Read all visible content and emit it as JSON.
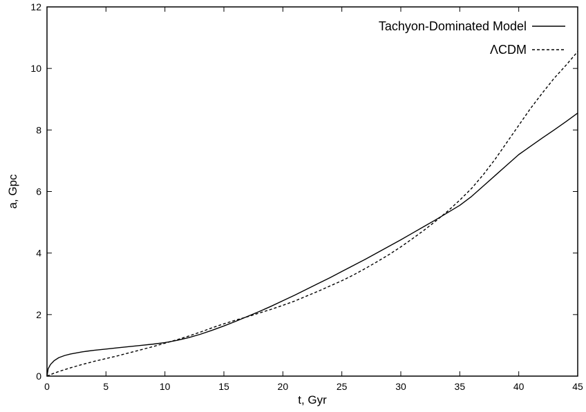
{
  "chart_data": {
    "type": "line",
    "title": "",
    "xlabel": "t, Gyr",
    "ylabel": "a, Gpc",
    "xlim": [
      0,
      45
    ],
    "ylim": [
      0,
      12
    ],
    "xticks": [
      0,
      5,
      10,
      15,
      20,
      25,
      30,
      35,
      40,
      45
    ],
    "yticks": [
      0,
      2,
      4,
      6,
      8,
      10,
      12
    ],
    "grid": false,
    "legend_position": "top-right",
    "series": [
      {
        "name": "Tachyon-Dominated Model",
        "style": "solid",
        "color": "#000000",
        "x": [
          0,
          0.1,
          0.3,
          0.6,
          1,
          1.5,
          2,
          3,
          4,
          5,
          6,
          7,
          8,
          9,
          10,
          11,
          12,
          13,
          14,
          15,
          16,
          17,
          18,
          19,
          20,
          21,
          22,
          23,
          24,
          25,
          26,
          27,
          28,
          29,
          30,
          31,
          32,
          33,
          34,
          35,
          36,
          37,
          38,
          39,
          40,
          41,
          42,
          43,
          44,
          45
        ],
        "y": [
          0,
          0.24,
          0.38,
          0.5,
          0.6,
          0.67,
          0.72,
          0.79,
          0.84,
          0.88,
          0.92,
          0.96,
          1.0,
          1.04,
          1.09,
          1.16,
          1.25,
          1.36,
          1.49,
          1.63,
          1.78,
          1.94,
          2.1,
          2.27,
          2.45,
          2.63,
          2.82,
          3.01,
          3.2,
          3.4,
          3.6,
          3.8,
          4.01,
          4.22,
          4.43,
          4.65,
          4.87,
          5.09,
          5.32,
          5.55,
          5.84,
          6.18,
          6.52,
          6.86,
          7.2,
          7.47,
          7.74,
          8.0,
          8.27,
          8.55
        ]
      },
      {
        "name": "ΛCDM",
        "style": "dashed",
        "color": "#000000",
        "x": [
          0,
          0.5,
          1,
          2,
          3,
          4,
          5,
          6,
          7,
          8,
          9,
          10,
          11,
          12,
          13,
          14,
          15,
          16,
          17,
          18,
          19,
          20,
          21,
          22,
          23,
          24,
          25,
          26,
          27,
          28,
          29,
          30,
          31,
          32,
          33,
          34,
          35,
          36,
          37,
          38,
          39,
          40,
          41,
          42,
          43,
          44,
          45
        ],
        "y": [
          0,
          0.08,
          0.15,
          0.27,
          0.38,
          0.48,
          0.57,
          0.66,
          0.76,
          0.86,
          0.96,
          1.07,
          1.18,
          1.3,
          1.43,
          1.57,
          1.7,
          1.82,
          1.93,
          2.05,
          2.17,
          2.3,
          2.44,
          2.6,
          2.76,
          2.93,
          3.1,
          3.29,
          3.5,
          3.72,
          3.95,
          4.2,
          4.47,
          4.75,
          5.05,
          5.37,
          5.72,
          6.1,
          6.55,
          7.05,
          7.6,
          8.15,
          8.7,
          9.2,
          9.68,
          10.1,
          10.55
        ]
      }
    ]
  }
}
